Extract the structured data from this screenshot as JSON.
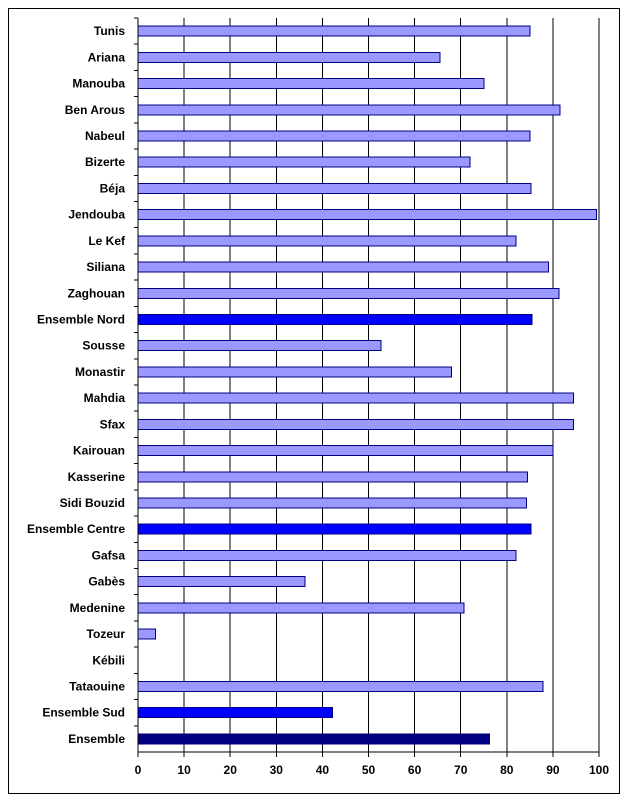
{
  "chart_data": {
    "type": "bar",
    "orientation": "horizontal",
    "title": "",
    "xlabel": "",
    "ylabel": "",
    "xlim": [
      0,
      100
    ],
    "x_ticks": [
      0,
      10,
      20,
      30,
      40,
      50,
      60,
      70,
      80,
      90,
      100
    ],
    "grid": "vertical",
    "legend": "none",
    "categories": [
      "Tunis",
      "Ariana",
      "Manouba",
      "Ben Arous",
      "Nabeul",
      "Bizerte",
      "Béja",
      "Jendouba",
      "Le Kef",
      "Siliana",
      "Zaghouan",
      "Ensemble Nord",
      "Sousse",
      "Monastir",
      "Mahdia",
      "Sfax",
      "Kairouan",
      "Kasserine",
      "Sidi Bouzid",
      "Ensemble Centre",
      "Gafsa",
      "Gabès",
      "Medenine",
      "Tozeur",
      "Kébili",
      "Tataouine",
      "Ensemble Sud",
      "Ensemble"
    ],
    "values": [
      85,
      65.5,
      75,
      91.5,
      85,
      72,
      85.3,
      99.5,
      82,
      89,
      91.3,
      85.5,
      52.7,
      68,
      94.5,
      94.5,
      90,
      84.5,
      84.3,
      85.2,
      82,
      36.2,
      70.7,
      3.8,
      0,
      87.8,
      42.2,
      76.3
    ],
    "bar_kinds": [
      "region",
      "region",
      "region",
      "region",
      "region",
      "region",
      "region",
      "region",
      "region",
      "region",
      "region",
      "subtotal",
      "region",
      "region",
      "region",
      "region",
      "region",
      "region",
      "region",
      "subtotal",
      "region",
      "region",
      "region",
      "region",
      "region",
      "region",
      "subtotal",
      "total"
    ],
    "colors": {
      "region": "#9999ff",
      "subtotal": "#0000ff",
      "total": "#000080",
      "border": "#000080",
      "grid": "#000000"
    }
  }
}
